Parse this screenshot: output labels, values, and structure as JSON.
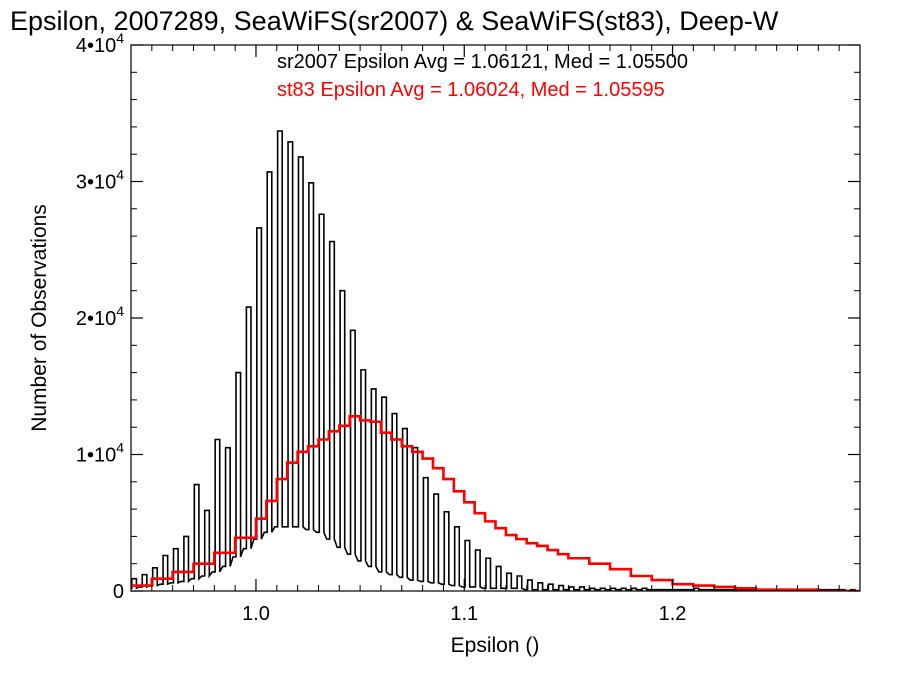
{
  "chart_data": {
    "type": "histogram",
    "title": "Epsilon, 2007289, SeaWiFS(sr2007) & SeaWiFS(st83), Deep-W",
    "xlabel": "Epsilon ()",
    "ylabel": "Number of Observations",
    "xlim": [
      0.94,
      1.29
    ],
    "ylim": [
      0,
      40000
    ],
    "x_ticks": [
      {
        "value": 1.0,
        "label": "1.0"
      },
      {
        "value": 1.1,
        "label": "1.1"
      },
      {
        "value": 1.2,
        "label": "1.2"
      }
    ],
    "y_ticks": [
      {
        "value": 0,
        "mantissa": "0",
        "exponent": ""
      },
      {
        "value": 10000,
        "mantissa": "1•10",
        "exponent": "4"
      },
      {
        "value": 20000,
        "mantissa": "2•10",
        "exponent": "4"
      },
      {
        "value": 30000,
        "mantissa": "3•10",
        "exponent": "4"
      },
      {
        "value": 40000,
        "mantissa": "4•10",
        "exponent": "4"
      }
    ],
    "grid": false,
    "series": [
      {
        "name": "sr2007",
        "color": "#000000",
        "stat_label": "sr2007 Epsilon Avg = 1.06121, Med = 1.05500",
        "style": "step",
        "x_start": 0.9415,
        "x_end": 1.2875,
        "bin_width": 0.005,
        "spike_values": [
          900,
          1200,
          1700,
          2600,
          3100,
          4000,
          7800,
          5900,
          11100,
          10500,
          16000,
          20800,
          26600,
          30700,
          33700,
          32900,
          31800,
          29900,
          27600,
          25600,
          22000,
          19100,
          16200,
          14800,
          14200,
          13000,
          11900,
          10500,
          8300,
          7100,
          5800,
          4700,
          3700,
          3000,
          2400,
          1800,
          1300,
          1100,
          800,
          600,
          500,
          400,
          300,
          300,
          200,
          200,
          200,
          200,
          200,
          200,
          100,
          100,
          100,
          100,
          200,
          100,
          100,
          100,
          100,
          100,
          100,
          100,
          100,
          100,
          100,
          100,
          100,
          100,
          100,
          100
        ],
        "trough_values": [
          200,
          300,
          400,
          500,
          600,
          700,
          900,
          1100,
          1400,
          1800,
          2500,
          3100,
          3800,
          4300,
          4700,
          4700,
          4700,
          4500,
          4300,
          3800,
          3200,
          2700,
          2200,
          1800,
          1400,
          1200,
          1000,
          800,
          700,
          600,
          500,
          400,
          300,
          300,
          200,
          200,
          200,
          200,
          100,
          100,
          100,
          100,
          100,
          100,
          100,
          100,
          100,
          100,
          100,
          100,
          100,
          100,
          100,
          100,
          100,
          100,
          100,
          100,
          100,
          100,
          100,
          100,
          100,
          100,
          100,
          100,
          100,
          100,
          100,
          0
        ]
      },
      {
        "name": "st83",
        "color": "#ff0000",
        "stat_label": "st83 Epsilon Avg = 1.06024, Med = 1.05595",
        "style": "step",
        "x": [
          0.94,
          0.95,
          0.96,
          0.97,
          0.98,
          0.99,
          1.0,
          1.005,
          1.01,
          1.015,
          1.02,
          1.025,
          1.03,
          1.035,
          1.04,
          1.045,
          1.05,
          1.055,
          1.06,
          1.065,
          1.07,
          1.075,
          1.08,
          1.085,
          1.09,
          1.095,
          1.1,
          1.105,
          1.11,
          1.115,
          1.12,
          1.125,
          1.13,
          1.135,
          1.14,
          1.145,
          1.15,
          1.16,
          1.17,
          1.18,
          1.19,
          1.2,
          1.21,
          1.22,
          1.23,
          1.24,
          1.25,
          1.26,
          1.27,
          1.28,
          1.29
        ],
        "y": [
          400,
          900,
          1400,
          2000,
          2800,
          3900,
          5300,
          6600,
          8200,
          9400,
          10200,
          10600,
          11100,
          11700,
          12100,
          12800,
          12500,
          12400,
          11600,
          11100,
          10600,
          10200,
          9700,
          9000,
          8200,
          7300,
          6500,
          5700,
          5100,
          4600,
          4100,
          3800,
          3500,
          3300,
          3000,
          2700,
          2400,
          2000,
          1600,
          1100,
          800,
          500,
          400,
          300,
          200,
          100,
          100,
          100,
          0,
          0,
          0
        ]
      }
    ]
  }
}
